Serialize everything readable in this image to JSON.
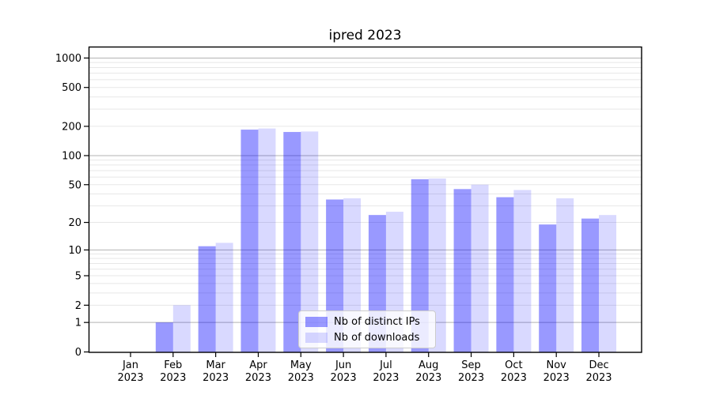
{
  "title": "ipred 2023",
  "chart_data": {
    "type": "bar",
    "title": "ipred 2023",
    "categories": [
      "Jan",
      "Feb",
      "Mar",
      "Apr",
      "May",
      "Jun",
      "Jul",
      "Aug",
      "Sep",
      "Oct",
      "Nov",
      "Dec"
    ],
    "category_year": "2023",
    "series": [
      {
        "name": "Nb of distinct IPs",
        "color": "rgba(0,0,255,0.4)",
        "values": [
          0,
          1,
          11,
          185,
          175,
          35,
          24,
          57,
          45,
          37,
          19,
          22
        ]
      },
      {
        "name": "Nb of downloads",
        "color": "rgba(0,0,255,0.15)",
        "values": [
          0,
          2,
          12,
          190,
          177,
          36,
          26,
          58,
          50,
          44,
          36,
          24
        ]
      }
    ],
    "yscale": "log1p",
    "yticks": [
      0,
      1,
      2,
      5,
      10,
      20,
      50,
      100,
      200,
      500,
      1000
    ],
    "ylim": [
      0,
      1285
    ],
    "xlabel": "",
    "ylabel": "",
    "grid": "horizontal-major-and-minor",
    "legend_position": "lower-center-inside"
  },
  "colors": {
    "grid_major": "#b3b3b3",
    "grid_minor": "#e7e7e7",
    "spine": "#000000",
    "tick_text": "#000000",
    "legend_bg": "rgba(255,255,255,0.8)",
    "legend_border": "#cccccc"
  }
}
